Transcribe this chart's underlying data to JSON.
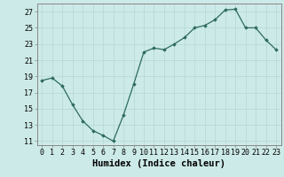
{
  "x": [
    0,
    1,
    2,
    3,
    4,
    5,
    6,
    7,
    8,
    9,
    10,
    11,
    12,
    13,
    14,
    15,
    16,
    17,
    18,
    19,
    20,
    21,
    22,
    23
  ],
  "y": [
    18.5,
    18.8,
    17.8,
    15.5,
    13.5,
    12.3,
    11.7,
    11.0,
    14.2,
    18.0,
    22.0,
    22.5,
    22.3,
    23.0,
    23.8,
    25.0,
    25.3,
    26.0,
    27.2,
    27.3,
    25.0,
    25.0,
    23.5,
    22.3
  ],
  "xlabel": "Humidex (Indice chaleur)",
  "xlim": [
    -0.5,
    23.5
  ],
  "ylim": [
    10.5,
    28.0
  ],
  "yticks": [
    11,
    13,
    15,
    17,
    19,
    21,
    23,
    25,
    27
  ],
  "xticks": [
    0,
    1,
    2,
    3,
    4,
    5,
    6,
    7,
    8,
    9,
    10,
    11,
    12,
    13,
    14,
    15,
    16,
    17,
    18,
    19,
    20,
    21,
    22,
    23
  ],
  "line_color": "#2d6b5e",
  "marker": "D",
  "marker_size": 1.8,
  "bg_color": "#cceae8",
  "grid_color": "#b8dbd8",
  "spine_color": "#888888",
  "xlabel_fontsize": 7.5,
  "tick_fontsize": 6.0,
  "linewidth": 0.9
}
